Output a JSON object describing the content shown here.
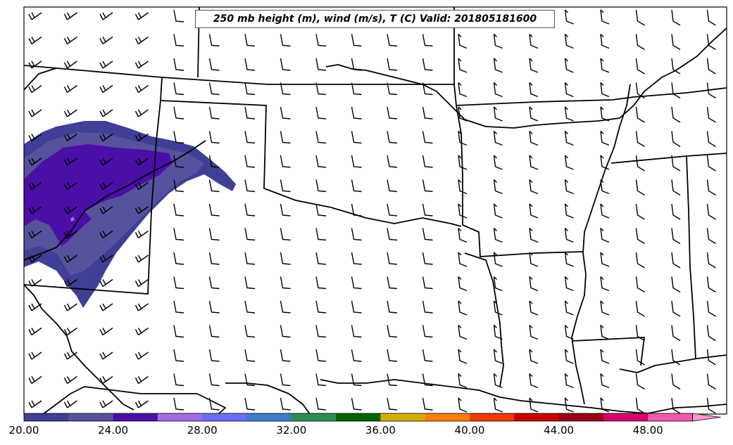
{
  "title": "250 mb height (m), wind (m/s), T (C) Valid: 201805181600",
  "colorbar": {
    "colors": [
      "#3f3f96",
      "#56529e",
      "#4b0fa8",
      "#a56ae6",
      "#6d6dff",
      "#3a7cc9",
      "#2e8b57",
      "#006400",
      "#d4ae00",
      "#ff7f00",
      "#ee3a00",
      "#c80000",
      "#960014",
      "#d8006b",
      "#f25ab0",
      "#ff99cc"
    ],
    "tick_labels": [
      "20.00",
      "24.00",
      "28.00",
      "32.00",
      "36.00",
      "40.00",
      "44.00",
      "48.00"
    ]
  }
}
